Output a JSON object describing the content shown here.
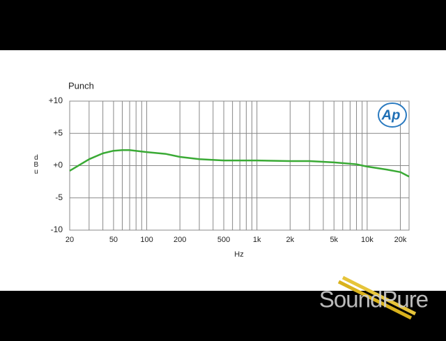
{
  "chart_data": {
    "type": "line",
    "title": "Punch",
    "y_label": "dBu",
    "x_label": "Hz",
    "logo": "Ap",
    "x": [
      20,
      30,
      40,
      50,
      60,
      70,
      100,
      150,
      200,
      300,
      500,
      1000,
      2000,
      3000,
      5000,
      8000,
      10000,
      15000,
      20000,
      24000
    ],
    "values": [
      -0.8,
      1.0,
      1.9,
      2.3,
      2.4,
      2.4,
      2.1,
      1.8,
      1.35,
      1.0,
      0.8,
      0.8,
      0.7,
      0.7,
      0.5,
      0.2,
      -0.15,
      -0.6,
      -1.0,
      -1.7
    ],
    "color": "#3aaa35",
    "xscale": "log",
    "grid": true,
    "xlim": [
      20,
      24000
    ],
    "xticks": [
      20,
      50,
      100,
      200,
      500,
      {
        "value": 1000,
        "label": "1k"
      },
      {
        "value": 2000,
        "label": "2k"
      },
      {
        "value": 5000,
        "label": "5k"
      },
      {
        "value": 10000,
        "label": "10k"
      },
      {
        "value": 20000,
        "label": "20k"
      }
    ],
    "xminor": [
      30,
      40,
      60,
      70,
      80,
      90,
      300,
      400,
      600,
      700,
      800,
      900,
      3000,
      4000,
      6000,
      7000,
      8000,
      9000
    ],
    "ylim": [
      -10,
      10
    ],
    "yticks": [
      -10,
      -5,
      {
        "value": 0,
        "label": "+0"
      },
      {
        "value": 5,
        "label": "+5"
      },
      {
        "value": 10,
        "label": "+10"
      }
    ]
  },
  "watermark": "SoundPure"
}
